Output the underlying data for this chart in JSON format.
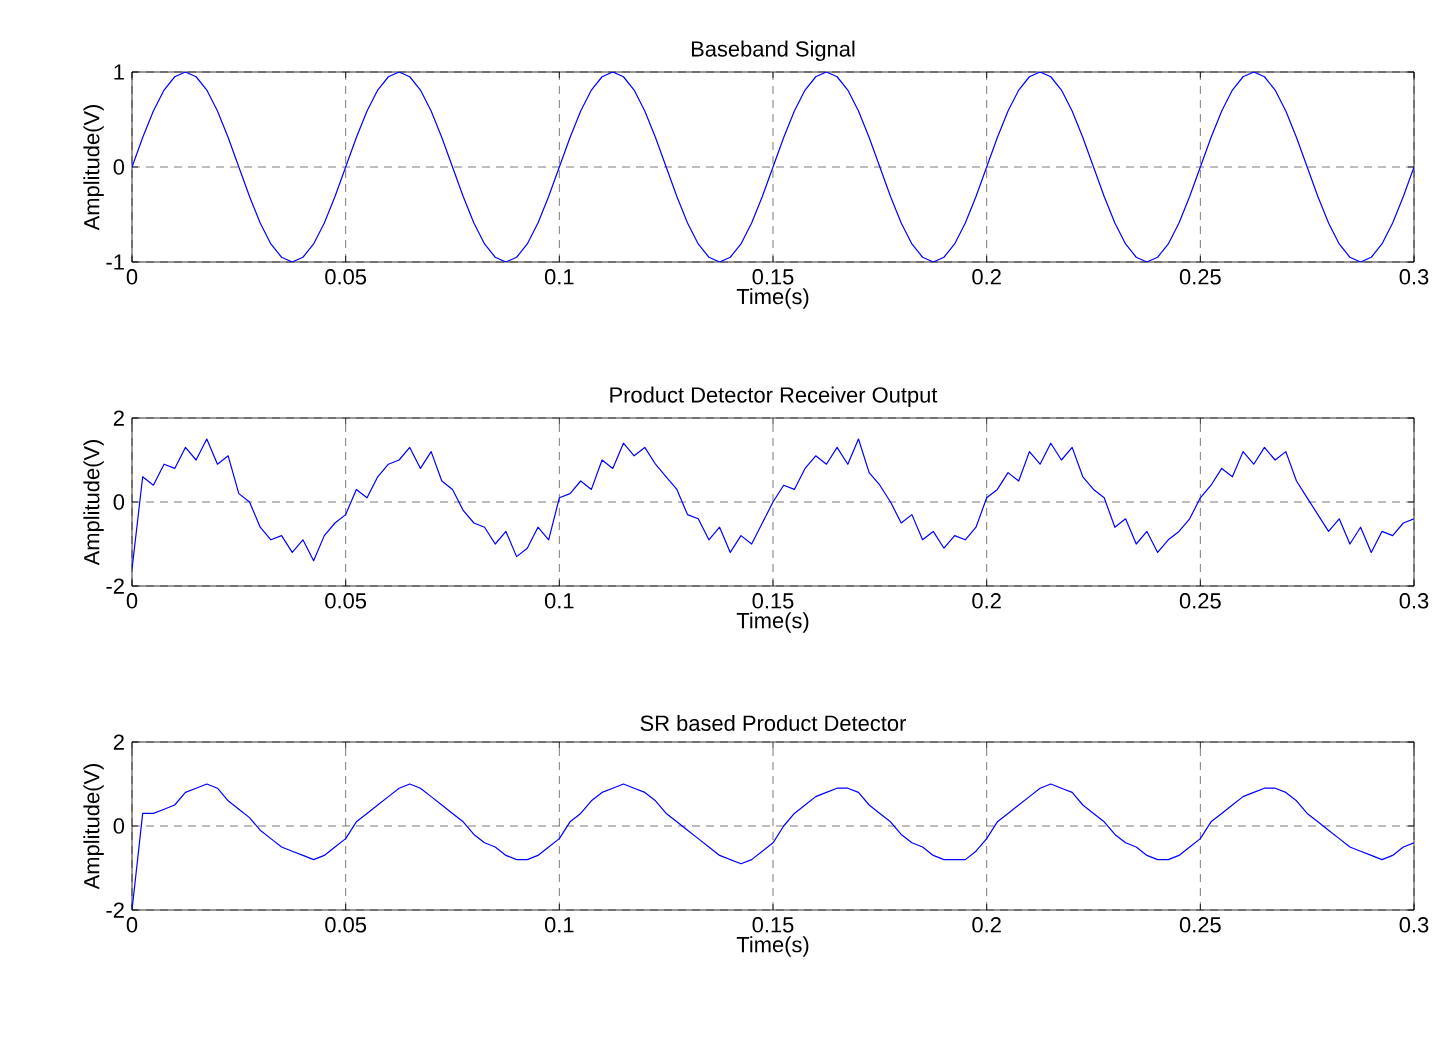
{
  "chart_data": [
    {
      "type": "line",
      "title": "Baseband Signal",
      "xlabel": "Time(s)",
      "ylabel": "Amplitude(V)",
      "xlim": [
        0,
        0.3
      ],
      "ylim": [
        -1,
        1
      ],
      "xticks": [
        0,
        0.05,
        0.1,
        0.15,
        0.2,
        0.25,
        0.3
      ],
      "yticks": [
        -1,
        0,
        1
      ],
      "grid": true,
      "x": [
        0,
        0.0025,
        0.005,
        0.0075,
        0.01,
        0.0125,
        0.015,
        0.0175,
        0.02,
        0.0225,
        0.025,
        0.0275,
        0.03,
        0.0325,
        0.035,
        0.0375,
        0.04,
        0.0425,
        0.045,
        0.0475,
        0.05,
        0.0525,
        0.055,
        0.0575,
        0.06,
        0.0625,
        0.065,
        0.0675,
        0.07,
        0.0725,
        0.075,
        0.0775,
        0.08,
        0.0825,
        0.085,
        0.0875,
        0.09,
        0.0925,
        0.095,
        0.0975,
        0.1,
        0.1025,
        0.105,
        0.1075,
        0.11,
        0.1125,
        0.115,
        0.1175,
        0.12,
        0.1225,
        0.125,
        0.1275,
        0.13,
        0.1325,
        0.135,
        0.1375,
        0.14,
        0.1425,
        0.145,
        0.1475,
        0.15,
        0.1525,
        0.155,
        0.1575,
        0.16,
        0.1625,
        0.165,
        0.1675,
        0.17,
        0.1725,
        0.175,
        0.1775,
        0.18,
        0.1825,
        0.185,
        0.1875,
        0.19,
        0.1925,
        0.195,
        0.1975,
        0.2,
        0.2025,
        0.205,
        0.2075,
        0.21,
        0.2125,
        0.215,
        0.2175,
        0.22,
        0.2225,
        0.225,
        0.2275,
        0.23,
        0.2325,
        0.235,
        0.2375,
        0.24,
        0.2425,
        0.245,
        0.2475,
        0.25,
        0.2525,
        0.255,
        0.2575,
        0.26,
        0.2625,
        0.265,
        0.2675,
        0.27,
        0.2725,
        0.275,
        0.2775,
        0.28,
        0.2825,
        0.285,
        0.2875,
        0.29,
        0.2925,
        0.295,
        0.2975,
        0.3
      ],
      "series": [
        {
          "color": "#0000ff",
          "values": [
            0,
            0.31,
            0.59,
            0.81,
            0.95,
            1,
            0.95,
            0.81,
            0.59,
            0.31,
            0,
            -0.31,
            -0.59,
            -0.81,
            -0.95,
            -1,
            -0.95,
            -0.81,
            -0.59,
            -0.31,
            0,
            0.31,
            0.59,
            0.81,
            0.95,
            1,
            0.95,
            0.81,
            0.59,
            0.31,
            0,
            -0.31,
            -0.59,
            -0.81,
            -0.95,
            -1,
            -0.95,
            -0.81,
            -0.59,
            -0.31,
            0,
            0.31,
            0.59,
            0.81,
            0.95,
            1,
            0.95,
            0.81,
            0.59,
            0.31,
            0,
            -0.31,
            -0.59,
            -0.81,
            -0.95,
            -1,
            -0.95,
            -0.81,
            -0.59,
            -0.31,
            0,
            0.31,
            0.59,
            0.81,
            0.95,
            1,
            0.95,
            0.81,
            0.59,
            0.31,
            0,
            -0.31,
            -0.59,
            -0.81,
            -0.95,
            -1,
            -0.95,
            -0.81,
            -0.59,
            -0.31,
            0,
            0.31,
            0.59,
            0.81,
            0.95,
            1,
            0.95,
            0.81,
            0.59,
            0.31,
            0,
            -0.31,
            -0.59,
            -0.81,
            -0.95,
            -1,
            -0.95,
            -0.81,
            -0.59,
            -0.31,
            0,
            0.31,
            0.59,
            0.81,
            0.95,
            1,
            0.95,
            0.81,
            0.59,
            0.31,
            0,
            -0.31,
            -0.59,
            -0.81,
            -0.95,
            -1,
            -0.95,
            -0.81,
            -0.59,
            -0.31,
            0
          ]
        }
      ]
    },
    {
      "type": "line",
      "title": "Product Detector Receiver Output",
      "xlabel": "Time(s)",
      "ylabel": "Amplitude(V)",
      "xlim": [
        0,
        0.3
      ],
      "ylim": [
        -2,
        2
      ],
      "xticks": [
        0,
        0.05,
        0.1,
        0.15,
        0.2,
        0.25,
        0.3
      ],
      "yticks": [
        -2,
        0,
        2
      ],
      "grid": true,
      "x": [
        0,
        0.0025,
        0.005,
        0.0075,
        0.01,
        0.0125,
        0.015,
        0.0175,
        0.02,
        0.0225,
        0.025,
        0.0275,
        0.03,
        0.0325,
        0.035,
        0.0375,
        0.04,
        0.0425,
        0.045,
        0.0475,
        0.05,
        0.0525,
        0.055,
        0.0575,
        0.06,
        0.0625,
        0.065,
        0.0675,
        0.07,
        0.0725,
        0.075,
        0.0775,
        0.08,
        0.0825,
        0.085,
        0.0875,
        0.09,
        0.0925,
        0.095,
        0.0975,
        0.1,
        0.1025,
        0.105,
        0.1075,
        0.11,
        0.1125,
        0.115,
        0.1175,
        0.12,
        0.1225,
        0.125,
        0.1275,
        0.13,
        0.1325,
        0.135,
        0.1375,
        0.14,
        0.1425,
        0.145,
        0.1475,
        0.15,
        0.1525,
        0.155,
        0.1575,
        0.16,
        0.1625,
        0.165,
        0.1675,
        0.17,
        0.1725,
        0.175,
        0.1775,
        0.18,
        0.1825,
        0.185,
        0.1875,
        0.19,
        0.1925,
        0.195,
        0.1975,
        0.2,
        0.2025,
        0.205,
        0.2075,
        0.21,
        0.2125,
        0.215,
        0.2175,
        0.22,
        0.2225,
        0.225,
        0.2275,
        0.23,
        0.2325,
        0.235,
        0.2375,
        0.24,
        0.2425,
        0.245,
        0.2475,
        0.25,
        0.2525,
        0.255,
        0.2575,
        0.26,
        0.2625,
        0.265,
        0.2675,
        0.27,
        0.2725,
        0.275,
        0.2775,
        0.28,
        0.2825,
        0.285,
        0.2875,
        0.29,
        0.2925,
        0.295,
        0.2975,
        0.3
      ],
      "series": [
        {
          "color": "#0000ff",
          "values": [
            -1.6,
            0.6,
            0.4,
            0.9,
            0.8,
            1.3,
            1.0,
            1.5,
            0.9,
            1.1,
            0.2,
            0.0,
            -0.6,
            -0.9,
            -0.8,
            -1.2,
            -0.9,
            -1.4,
            -0.8,
            -0.5,
            -0.3,
            0.3,
            0.1,
            0.6,
            0.9,
            1.0,
            1.3,
            0.8,
            1.2,
            0.5,
            0.3,
            -0.2,
            -0.5,
            -0.6,
            -1.0,
            -0.7,
            -1.3,
            -1.1,
            -0.6,
            -0.9,
            0.1,
            0.2,
            0.5,
            0.3,
            1.0,
            0.8,
            1.4,
            1.1,
            1.3,
            0.9,
            0.6,
            0.3,
            -0.3,
            -0.4,
            -0.9,
            -0.6,
            -1.2,
            -0.8,
            -1.0,
            -0.5,
            0.0,
            0.4,
            0.3,
            0.8,
            1.1,
            0.9,
            1.3,
            0.9,
            1.5,
            0.7,
            0.4,
            0.0,
            -0.5,
            -0.3,
            -0.9,
            -0.7,
            -1.1,
            -0.8,
            -0.9,
            -0.6,
            0.1,
            0.3,
            0.7,
            0.5,
            1.2,
            0.9,
            1.4,
            1.0,
            1.3,
            0.6,
            0.3,
            0.1,
            -0.6,
            -0.4,
            -1.0,
            -0.7,
            -1.2,
            -0.9,
            -0.7,
            -0.4,
            0.1,
            0.4,
            0.8,
            0.6,
            1.2,
            0.9,
            1.3,
            1.0,
            1.2,
            0.5,
            0.1,
            -0.3,
            -0.7,
            -0.4,
            -1.0,
            -0.6,
            -1.2,
            -0.7,
            -0.8,
            -0.5,
            -0.4
          ]
        }
      ]
    },
    {
      "type": "line",
      "title": "SR based Product Detector",
      "xlabel": "Time(s)",
      "ylabel": "Amplitude(V)",
      "xlim": [
        0,
        0.3
      ],
      "ylim": [
        -2,
        2
      ],
      "xticks": [
        0,
        0.05,
        0.1,
        0.15,
        0.2,
        0.25,
        0.3
      ],
      "yticks": [
        -2,
        0,
        2
      ],
      "grid": true,
      "x": [
        0,
        0.0025,
        0.005,
        0.0075,
        0.01,
        0.0125,
        0.015,
        0.0175,
        0.02,
        0.0225,
        0.025,
        0.0275,
        0.03,
        0.0325,
        0.035,
        0.0375,
        0.04,
        0.0425,
        0.045,
        0.0475,
        0.05,
        0.0525,
        0.055,
        0.0575,
        0.06,
        0.0625,
        0.065,
        0.0675,
        0.07,
        0.0725,
        0.075,
        0.0775,
        0.08,
        0.0825,
        0.085,
        0.0875,
        0.09,
        0.0925,
        0.095,
        0.0975,
        0.1,
        0.1025,
        0.105,
        0.1075,
        0.11,
        0.1125,
        0.115,
        0.1175,
        0.12,
        0.1225,
        0.125,
        0.1275,
        0.13,
        0.1325,
        0.135,
        0.1375,
        0.14,
        0.1425,
        0.145,
        0.1475,
        0.15,
        0.1525,
        0.155,
        0.1575,
        0.16,
        0.1625,
        0.165,
        0.1675,
        0.17,
        0.1725,
        0.175,
        0.1775,
        0.18,
        0.1825,
        0.185,
        0.1875,
        0.19,
        0.1925,
        0.195,
        0.1975,
        0.2,
        0.2025,
        0.205,
        0.2075,
        0.21,
        0.2125,
        0.215,
        0.2175,
        0.22,
        0.2225,
        0.225,
        0.2275,
        0.23,
        0.2325,
        0.235,
        0.2375,
        0.24,
        0.2425,
        0.245,
        0.2475,
        0.25,
        0.2525,
        0.255,
        0.2575,
        0.26,
        0.2625,
        0.265,
        0.2675,
        0.27,
        0.2725,
        0.275,
        0.2775,
        0.28,
        0.2825,
        0.285,
        0.2875,
        0.29,
        0.2925,
        0.295,
        0.2975,
        0.3
      ],
      "series": [
        {
          "color": "#0000ff",
          "values": [
            -2.0,
            0.3,
            0.3,
            0.4,
            0.5,
            0.8,
            0.9,
            1.0,
            0.9,
            0.6,
            0.4,
            0.2,
            -0.1,
            -0.3,
            -0.5,
            -0.6,
            -0.7,
            -0.8,
            -0.7,
            -0.5,
            -0.3,
            0.1,
            0.3,
            0.5,
            0.7,
            0.9,
            1.0,
            0.9,
            0.7,
            0.5,
            0.3,
            0.1,
            -0.2,
            -0.4,
            -0.5,
            -0.7,
            -0.8,
            -0.8,
            -0.7,
            -0.5,
            -0.3,
            0.1,
            0.3,
            0.6,
            0.8,
            0.9,
            1.0,
            0.9,
            0.8,
            0.6,
            0.3,
            0.1,
            -0.1,
            -0.3,
            -0.5,
            -0.7,
            -0.8,
            -0.9,
            -0.8,
            -0.6,
            -0.4,
            0.0,
            0.3,
            0.5,
            0.7,
            0.8,
            0.9,
            0.9,
            0.8,
            0.5,
            0.3,
            0.1,
            -0.2,
            -0.4,
            -0.5,
            -0.7,
            -0.8,
            -0.8,
            -0.8,
            -0.6,
            -0.3,
            0.1,
            0.3,
            0.5,
            0.7,
            0.9,
            1.0,
            0.9,
            0.8,
            0.5,
            0.3,
            0.1,
            -0.2,
            -0.4,
            -0.5,
            -0.7,
            -0.8,
            -0.8,
            -0.7,
            -0.5,
            -0.3,
            0.1,
            0.3,
            0.5,
            0.7,
            0.8,
            0.9,
            0.9,
            0.8,
            0.6,
            0.3,
            0.1,
            -0.1,
            -0.3,
            -0.5,
            -0.6,
            -0.7,
            -0.8,
            -0.7,
            -0.5,
            -0.4
          ]
        }
      ]
    }
  ]
}
